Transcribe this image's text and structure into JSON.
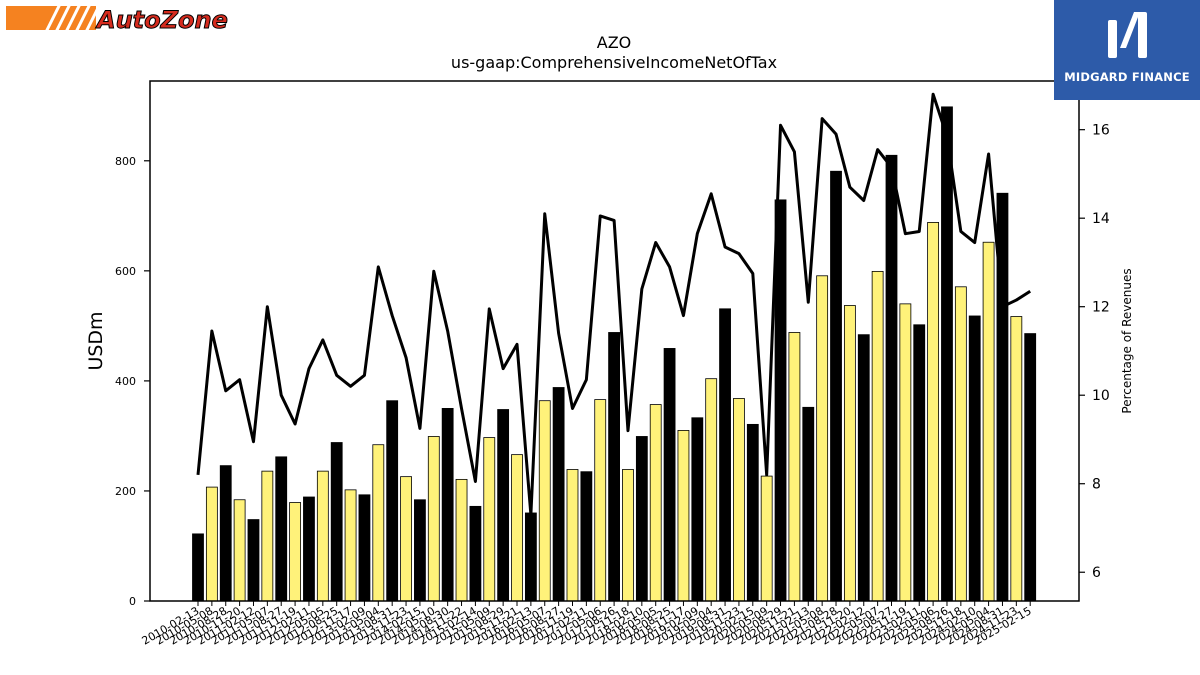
{
  "branding": {
    "left_logo_text": "AutoZone",
    "right_logo_text": "MIDGARD FINANCE"
  },
  "colors": {
    "bar_dark": "#000000",
    "bar_light": "#fff27a",
    "line": "#000000",
    "logo_orange": "#f58220",
    "logo_red": "#d52b1e",
    "midgard_blue": "#2d5ba9"
  },
  "chart_data": {
    "type": "bar",
    "title": "AZO",
    "subtitle": "us-gaap:ComprehensiveIncomeNetOfTax",
    "ylabel": "USDm",
    "ylabel_right": "Percentage of Revenues",
    "ylim": [
      0,
      945
    ],
    "ylim_right": [
      5.35,
      17.1
    ],
    "yticks": [
      0,
      200,
      400,
      600,
      800
    ],
    "yticks_right": [
      6,
      8,
      10,
      12,
      14,
      16
    ],
    "grid": false,
    "categories": [
      "2010-02-13",
      "2010-05-08",
      "2010-08-28",
      "2010-11-20",
      "2011-02-12",
      "2011-05-07",
      "2011-08-27",
      "2011-11-19",
      "2012-02-11",
      "2012-05-05",
      "2012-08-25",
      "2012-11-17",
      "2013-02-09",
      "2013-05-04",
      "2013-08-31",
      "2013-11-23",
      "2014-02-15",
      "2014-05-10",
      "2014-08-30",
      "2014-11-22",
      "2015-02-14",
      "2015-05-09",
      "2015-08-29",
      "2015-11-21",
      "2016-02-13",
      "2016-05-07",
      "2016-08-27",
      "2016-11-19",
      "2017-02-11",
      "2017-05-06",
      "2017-08-26",
      "2017-11-18",
      "2018-02-10",
      "2018-05-05",
      "2018-08-25",
      "2018-11-17",
      "2019-02-09",
      "2019-05-04",
      "2019-08-31",
      "2019-11-23",
      "2020-02-15",
      "2020-05-09",
      "2020-08-29",
      "2020-11-21",
      "2021-02-13",
      "2021-05-08",
      "2021-08-28",
      "2021-11-20",
      "2022-02-12",
      "2022-05-07",
      "2022-08-27",
      "2022-11-19",
      "2023-02-11",
      "2023-05-06",
      "2023-08-26",
      "2023-11-18",
      "2024-02-10",
      "2024-05-04",
      "2024-08-31",
      "2024-11-23",
      "2025-02-15"
    ],
    "series": [
      {
        "values": [
          122,
          207,
          246,
          184,
          148,
          236,
          262,
          179,
          189,
          236,
          288,
          202,
          193,
          284,
          364,
          226,
          184,
          299,
          350,
          221,
          172,
          297,
          348,
          266,
          160,
          364,
          388,
          239,
          235,
          366,
          488,
          239,
          299,
          357,
          459,
          310,
          333,
          404,
          531,
          368,
          321,
          227,
          729,
          488,
          352,
          591,
          781,
          537,
          484,
          599,
          810,
          540,
          502,
          688,
          898,
          571,
          518,
          652,
          741,
          517,
          486
        ],
        "color_note": "alternating black and yellow bars"
      },
      {
        "name": "Percentage of Revenues",
        "axis": "right",
        "type": "line",
        "values": [
          8.2,
          11.45,
          10.1,
          10.35,
          8.95,
          12.0,
          10.0,
          9.35,
          10.6,
          11.25,
          10.45,
          10.2,
          10.45,
          12.9,
          11.8,
          10.85,
          9.25,
          12.8,
          11.45,
          9.7,
          8.05,
          11.95,
          10.6,
          11.15,
          7.3,
          14.1,
          11.4,
          9.7,
          10.35,
          14.05,
          13.95,
          9.2,
          12.4,
          13.45,
          12.9,
          11.8,
          13.65,
          14.55,
          13.35,
          13.2,
          12.75,
          8.2,
          16.1,
          15.5,
          12.1,
          16.25,
          15.9,
          14.7,
          14.4,
          15.55,
          15.15,
          13.65,
          13.7,
          16.8,
          15.85,
          13.7,
          13.45,
          15.45,
          12.0,
          12.15,
          12.35
        ]
      }
    ]
  }
}
